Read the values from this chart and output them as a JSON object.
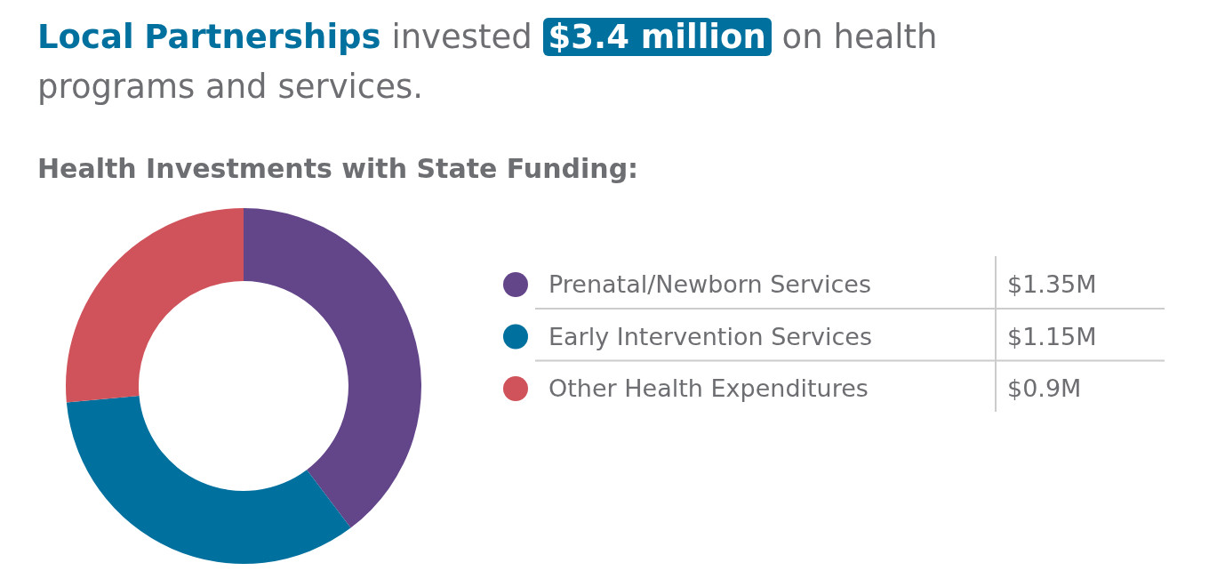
{
  "chart_data": {
    "type": "donut",
    "title": "Local Partnerships invested $3.4 million on health programs and services.",
    "subtitle": "Health Investments with State Funding:",
    "categories": [
      "Prenatal/Newborn Services",
      "Early Intervention Services",
      "Other Health Expenditures"
    ],
    "values": [
      1.35,
      1.15,
      0.9
    ],
    "colors": [
      "#63458a",
      "#00709e",
      "#d0525a"
    ],
    "value_labels": [
      "$1.35M",
      "$1.15M",
      "$0.9M"
    ],
    "legend": "right"
  }
}
